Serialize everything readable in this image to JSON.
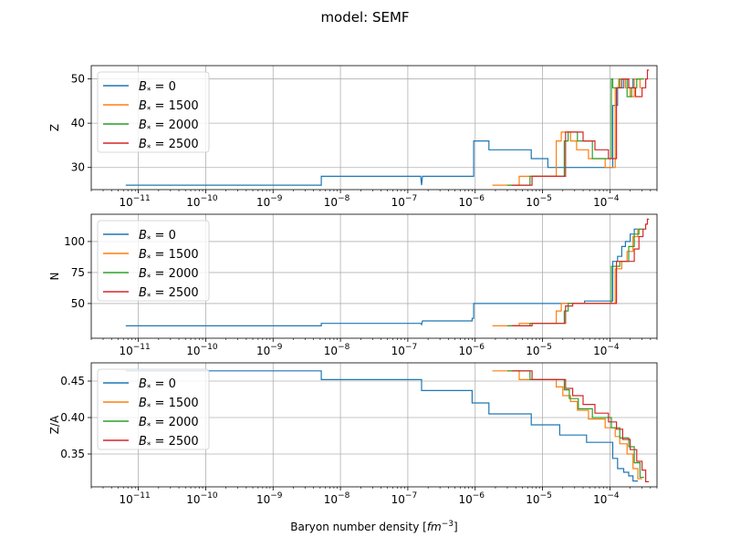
{
  "suptitle": "model: SEMF",
  "xlabel_main": "Baryon number density [",
  "xlabel_unit": "fm",
  "xlabel_exp": "−3",
  "xlabel_close": "]",
  "x_ticks": [
    {
      "exp": -11,
      "label": "10",
      "sup": "−11"
    },
    {
      "exp": -10,
      "label": "10",
      "sup": "−10"
    },
    {
      "exp": -9,
      "label": "10",
      "sup": "−9"
    },
    {
      "exp": -8,
      "label": "10",
      "sup": "−8"
    },
    {
      "exp": -7,
      "label": "10",
      "sup": "−7"
    },
    {
      "exp": -6,
      "label": "10",
      "sup": "−6"
    },
    {
      "exp": -5,
      "label": "10",
      "sup": "−5"
    },
    {
      "exp": -4,
      "label": "10",
      "sup": "−4"
    }
  ],
  "colors": {
    "b0": "#1f77b4",
    "b1500": "#ff7f0e",
    "b2000": "#2ca02c",
    "b2500": "#d62728"
  },
  "legend": [
    {
      "name": "B",
      "sub": "*",
      "eq": " = 0",
      "color": "#1f77b4"
    },
    {
      "name": "B",
      "sub": "*",
      "eq": " = 1500",
      "color": "#ff7f0e"
    },
    {
      "name": "B",
      "sub": "*",
      "eq": " = 2000",
      "color": "#2ca02c"
    },
    {
      "name": "B",
      "sub": "*",
      "eq": " = 2500",
      "color": "#d62728"
    }
  ],
  "chart_data": [
    {
      "type": "line",
      "xscale": "log",
      "xlim": [
        2e-12,
        0.0005
      ],
      "ylabel": "Z",
      "ylim": [
        25,
        53
      ],
      "yticks": [
        30,
        40,
        50
      ],
      "grid": true,
      "legend_position": "upper left",
      "series": [
        {
          "name": "B* = 0",
          "color": "#1f77b4",
          "x": [
            6.5e-12,
            5.2e-09,
            5.2e-09,
            1.55e-07,
            1.6e-07,
            1.65e-07,
            9.5e-07,
            9.5e-07,
            1.6e-06,
            1.6e-06,
            6.8e-06,
            6.8e-06,
            1.2e-05,
            1.2e-05,
            4.2e-05,
            4.2e-05,
            0.00011,
            0.00011,
            0.00013,
            0.00013,
            0.00016,
            0.00016,
            0.00019,
            0.00019,
            0.00022,
            0.00022,
            0.00026
          ],
          "y": [
            26,
            26,
            28,
            28,
            26,
            28,
            28,
            36,
            36,
            34,
            34,
            32,
            32,
            30,
            30,
            30,
            30,
            44,
            44,
            48,
            48,
            50,
            50,
            48,
            48,
            50,
            50
          ]
        },
        {
          "name": "B* = 1500",
          "color": "#ff7f0e",
          "x": [
            1.8e-06,
            4.5e-06,
            4.5e-06,
            1.6e-05,
            1.6e-05,
            1.9e-05,
            1.9e-05,
            2.6e-05,
            2.6e-05,
            3.2e-05,
            3.2e-05,
            4.8e-05,
            4.8e-05,
            8.5e-05,
            8.5e-05,
            0.00012,
            0.00012,
            0.000135,
            0.000135,
            0.00017,
            0.00017,
            0.0002,
            0.0002,
            0.00023,
            0.00023,
            0.00028,
            0.00028,
            0.0003
          ],
          "y": [
            26,
            26,
            28,
            28,
            36,
            36,
            38,
            38,
            36,
            36,
            34,
            34,
            32,
            32,
            30,
            30,
            48,
            48,
            50,
            50,
            48,
            48,
            46,
            46,
            50,
            50,
            48,
            48
          ]
        },
        {
          "name": "B* = 2000",
          "color": "#2ca02c",
          "x": [
            3e-06,
            6.5e-06,
            6.5e-06,
            2.1e-05,
            2.1e-05,
            2.4e-05,
            2.4e-05,
            3.3e-05,
            3.3e-05,
            5.5e-05,
            5.5e-05,
            0.000105,
            0.000105,
            0.00011,
            0.00011,
            0.00014,
            0.00014,
            0.00018,
            0.00018,
            0.00021,
            0.00021,
            0.00025,
            0.00025,
            0.00032
          ],
          "y": [
            26,
            26,
            28,
            28,
            36,
            36,
            38,
            38,
            36,
            36,
            32,
            32,
            50,
            50,
            48,
            48,
            50,
            50,
            46,
            46,
            48,
            48,
            50,
            50
          ]
        },
        {
          "name": "B* = 2500",
          "color": "#d62728",
          "x": [
            3.5e-06,
            7e-06,
            7e-06,
            2.2e-05,
            2.2e-05,
            2.8e-05,
            2.8e-05,
            4e-05,
            4e-05,
            6e-05,
            6e-05,
            9.5e-05,
            9.5e-05,
            0.000125,
            0.000125,
            0.00015,
            0.00015,
            0.00019,
            0.00019,
            0.00024,
            0.00024,
            0.0003,
            0.0003,
            0.00034,
            0.00034,
            0.00036,
            0.00036,
            0.00038
          ],
          "y": [
            26,
            26,
            28,
            28,
            38,
            38,
            38,
            38,
            36,
            36,
            34,
            34,
            32,
            32,
            48,
            48,
            50,
            50,
            48,
            48,
            46,
            46,
            48,
            48,
            50,
            50,
            52,
            52
          ]
        }
      ]
    },
    {
      "type": "line",
      "xscale": "log",
      "xlim": [
        2e-12,
        0.0005
      ],
      "ylabel": "N",
      "ylim": [
        22,
        122
      ],
      "yticks": [
        50,
        75,
        100
      ],
      "grid": true,
      "legend_position": "upper left",
      "series": [
        {
          "name": "B* = 0",
          "color": "#1f77b4",
          "x": [
            6.5e-12,
            5.2e-09,
            5.2e-09,
            1.55e-07,
            1.6e-07,
            1.65e-07,
            9e-07,
            9e-07,
            9.5e-07,
            9.5e-07,
            4.2e-05,
            4.2e-05,
            0.00011,
            0.00011,
            0.00013,
            0.00013,
            0.00015,
            0.00015,
            0.00017,
            0.00017,
            0.0002,
            0.0002,
            0.00023,
            0.00023,
            0.00026
          ],
          "y": [
            32,
            32,
            34,
            34,
            33,
            36,
            36,
            38,
            38,
            50,
            50,
            52,
            52,
            84,
            84,
            88,
            88,
            96,
            96,
            100,
            100,
            106,
            106,
            110,
            110
          ]
        },
        {
          "name": "B* = 1500",
          "color": "#ff7f0e",
          "x": [
            1.8e-06,
            4.5e-06,
            4.5e-06,
            1.6e-05,
            1.6e-05,
            1.9e-05,
            1.9e-05,
            0.00012,
            0.00012,
            0.00015,
            0.00015,
            0.00018,
            0.00018,
            0.00022,
            0.00022,
            0.00026,
            0.00026,
            0.0003
          ],
          "y": [
            32,
            32,
            34,
            34,
            44,
            44,
            50,
            50,
            78,
            78,
            84,
            84,
            92,
            92,
            104,
            104,
            110,
            110
          ]
        },
        {
          "name": "B* = 2000",
          "color": "#2ca02c",
          "x": [
            3e-06,
            6.5e-06,
            6.5e-06,
            2.1e-05,
            2.1e-05,
            2.4e-05,
            2.4e-05,
            0.000105,
            0.000105,
            0.00014,
            0.00014,
            0.00019,
            0.00019,
            0.00023,
            0.00023,
            0.00027,
            0.00027,
            0.00032
          ],
          "y": [
            32,
            32,
            34,
            34,
            44,
            44,
            50,
            50,
            80,
            80,
            84,
            84,
            96,
            96,
            106,
            106,
            110,
            110
          ]
        },
        {
          "name": "B* = 2500",
          "color": "#d62728",
          "x": [
            3.5e-06,
            7e-06,
            7e-06,
            2.2e-05,
            2.2e-05,
            2.8e-05,
            2.8e-05,
            0.000125,
            0.000125,
            0.00023,
            0.00023,
            0.00027,
            0.00027,
            0.00031,
            0.00031,
            0.00034,
            0.00034,
            0.00036,
            0.00036,
            0.00038
          ],
          "y": [
            32,
            32,
            34,
            34,
            48,
            48,
            50,
            50,
            84,
            84,
            94,
            94,
            104,
            104,
            110,
            110,
            114,
            114,
            118,
            118
          ]
        }
      ]
    },
    {
      "type": "line",
      "xscale": "log",
      "xlim": [
        2e-12,
        0.0005
      ],
      "ylabel": "Z/A",
      "ylim": [
        0.305,
        0.475
      ],
      "yticks": [
        0.35,
        0.4,
        0.45
      ],
      "grid": true,
      "legend_position": "upper left",
      "series": [
        {
          "name": "B* = 0",
          "color": "#1f77b4",
          "x": [
            6.5e-12,
            5.2e-09,
            5.2e-09,
            1.6e-07,
            1.6e-07,
            9e-07,
            9e-07,
            1.6e-06,
            1.6e-06,
            6.8e-06,
            6.8e-06,
            1.8e-05,
            1.8e-05,
            4.5e-05,
            4.5e-05,
            0.00011,
            0.00011,
            0.00013,
            0.00013,
            0.00016,
            0.00016,
            0.00019,
            0.00019,
            0.00022,
            0.00022,
            0.00026
          ],
          "y": [
            0.464,
            0.464,
            0.452,
            0.452,
            0.437,
            0.437,
            0.42,
            0.42,
            0.405,
            0.405,
            0.39,
            0.39,
            0.376,
            0.376,
            0.366,
            0.366,
            0.344,
            0.344,
            0.33,
            0.33,
            0.325,
            0.325,
            0.32,
            0.32,
            0.313,
            0.313
          ]
        },
        {
          "name": "B* = 1500",
          "color": "#ff7f0e",
          "x": [
            1.8e-06,
            4.5e-06,
            4.5e-06,
            1.6e-05,
            1.6e-05,
            2e-05,
            2e-05,
            2.6e-05,
            2.6e-05,
            3.3e-05,
            3.3e-05,
            4.8e-05,
            4.8e-05,
            8.5e-05,
            8.5e-05,
            0.00012,
            0.00012,
            0.00014,
            0.00014,
            0.00018,
            0.00018,
            0.00022,
            0.00022,
            0.00026,
            0.00026,
            0.0003
          ],
          "y": [
            0.464,
            0.464,
            0.452,
            0.452,
            0.442,
            0.442,
            0.43,
            0.43,
            0.422,
            0.422,
            0.41,
            0.41,
            0.398,
            0.398,
            0.386,
            0.386,
            0.374,
            0.374,
            0.364,
            0.364,
            0.35,
            0.35,
            0.33,
            0.33,
            0.316,
            0.316
          ]
        },
        {
          "name": "B* = 2000",
          "color": "#2ca02c",
          "x": [
            3e-06,
            6.5e-06,
            6.5e-06,
            2.1e-05,
            2.1e-05,
            2.5e-05,
            2.5e-05,
            3.4e-05,
            3.4e-05,
            5.5e-05,
            5.5e-05,
            0.000105,
            0.000105,
            0.00014,
            0.00014,
            0.00019,
            0.00019,
            0.00023,
            0.00023,
            0.00028,
            0.00028,
            0.00032
          ],
          "y": [
            0.464,
            0.464,
            0.452,
            0.452,
            0.438,
            0.438,
            0.426,
            0.426,
            0.412,
            0.412,
            0.4,
            0.4,
            0.386,
            0.386,
            0.372,
            0.372,
            0.36,
            0.36,
            0.338,
            0.338,
            0.318,
            0.318
          ]
        },
        {
          "name": "B* = 2500",
          "color": "#d62728",
          "x": [
            3.5e-06,
            7e-06,
            7e-06,
            2.2e-05,
            2.2e-05,
            2.8e-05,
            2.8e-05,
            4e-05,
            4e-05,
            6e-05,
            6e-05,
            9.5e-05,
            9.5e-05,
            0.000125,
            0.000125,
            0.000155,
            0.000155,
            0.0002,
            0.0002,
            0.00025,
            0.00025,
            0.0003,
            0.0003,
            0.00034,
            0.00034,
            0.00038
          ],
          "y": [
            0.464,
            0.464,
            0.452,
            0.452,
            0.44,
            0.44,
            0.43,
            0.43,
            0.418,
            0.418,
            0.406,
            0.406,
            0.394,
            0.394,
            0.384,
            0.384,
            0.37,
            0.37,
            0.356,
            0.356,
            0.34,
            0.34,
            0.328,
            0.328,
            0.312,
            0.312
          ]
        }
      ]
    }
  ]
}
